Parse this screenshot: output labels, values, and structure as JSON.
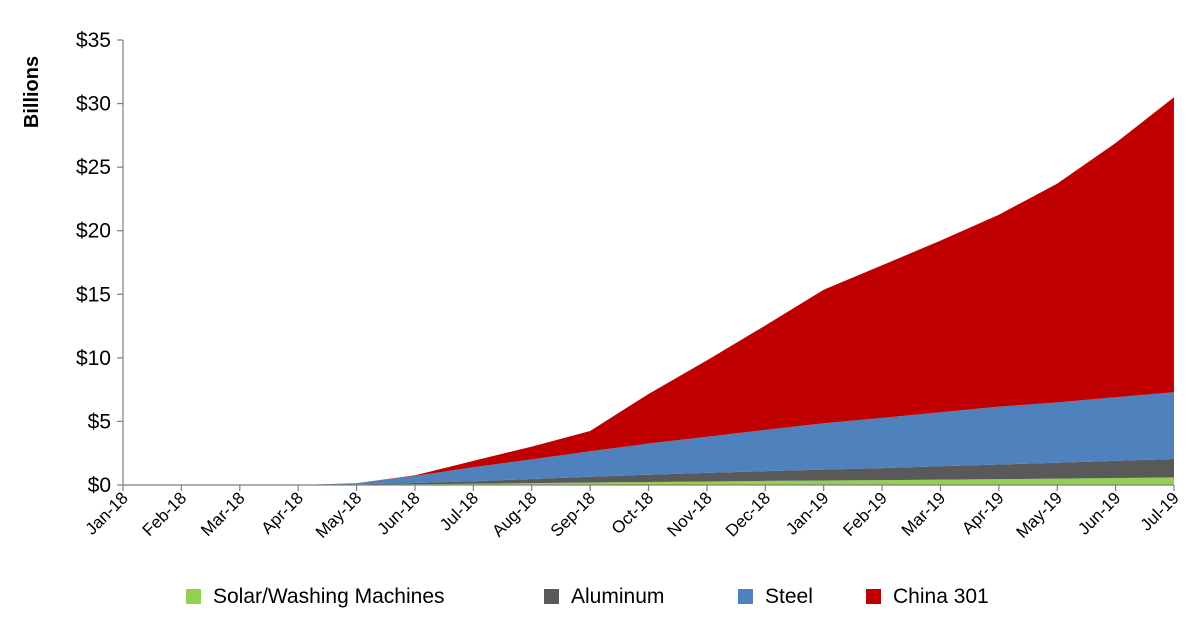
{
  "chart_data": {
    "type": "area",
    "stacked": true,
    "ylabel": "Billions",
    "xlabel": "",
    "title": "",
    "ylim": [
      0,
      35
    ],
    "y_ticks": [
      "$0",
      "$5",
      "$10",
      "$15",
      "$20",
      "$25",
      "$30",
      "$35"
    ],
    "y_tick_values": [
      0,
      5,
      10,
      15,
      20,
      25,
      30,
      35
    ],
    "categories": [
      "Jan-18",
      "Feb-18",
      "Mar-18",
      "Apr-18",
      "May-18",
      "Jun-18",
      "Jul-18",
      "Aug-18",
      "Sep-18",
      "Oct-18",
      "Nov-18",
      "Dec-18",
      "Jan-19",
      "Feb-19",
      "Mar-19",
      "Apr-19",
      "May-19",
      "Jun-19",
      "Jul-19"
    ],
    "grid": false,
    "legend_position": "bottom",
    "series": [
      {
        "name": "Solar/Washing Machines",
        "color": "#92d050",
        "values": [
          0,
          0,
          0,
          0,
          0.02,
          0.06,
          0.1,
          0.15,
          0.2,
          0.24,
          0.28,
          0.32,
          0.35,
          0.38,
          0.42,
          0.46,
          0.5,
          0.55,
          0.6
        ]
      },
      {
        "name": "Aluminum",
        "color": "#595959",
        "values": [
          0,
          0,
          0,
          0,
          0.03,
          0.1,
          0.2,
          0.32,
          0.45,
          0.57,
          0.67,
          0.77,
          0.86,
          0.95,
          1.05,
          1.15,
          1.25,
          1.35,
          1.45
        ]
      },
      {
        "name": "Steel",
        "color": "#4f81bd",
        "values": [
          0,
          0,
          0,
          0,
          0.1,
          0.55,
          1.1,
          1.55,
          2.0,
          2.45,
          2.85,
          3.25,
          3.65,
          3.95,
          4.25,
          4.55,
          4.75,
          5.0,
          5.25
        ]
      },
      {
        "name": "China 301",
        "color": "#c00000",
        "values": [
          0,
          0,
          0,
          0,
          0,
          0.05,
          0.5,
          1.0,
          1.6,
          3.9,
          6.0,
          8.2,
          10.5,
          12.0,
          13.5,
          15.1,
          17.2,
          20.0,
          23.2
        ]
      }
    ]
  }
}
